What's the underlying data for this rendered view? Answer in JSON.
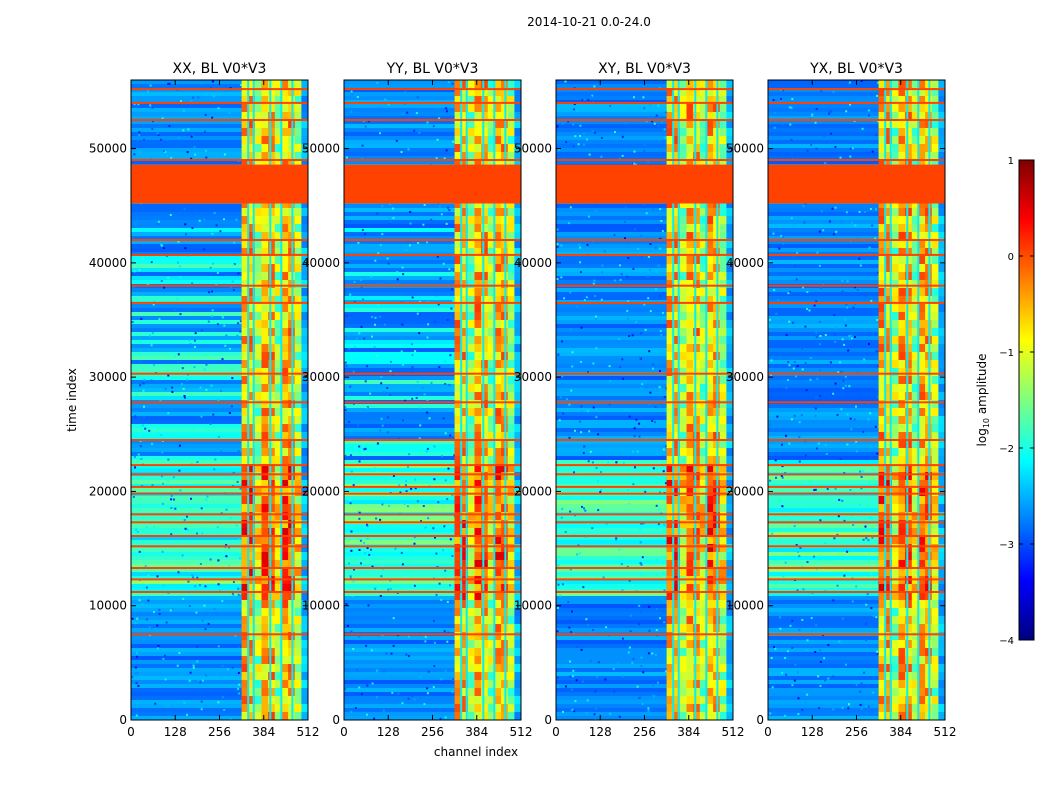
{
  "figure": {
    "suptitle": "2014-10-21 0.0-24.0",
    "xlabel": "channel index",
    "ylabel": "time index"
  },
  "colorbar": {
    "label_prefix": "log",
    "label_sub": "10",
    "label_suffix": " amplitude",
    "range": [
      -4,
      1
    ],
    "ticks": [
      1,
      0,
      -1,
      -2,
      -3,
      -4
    ],
    "tick_labels": [
      "1",
      "0",
      "−1",
      "−2",
      "−3",
      "−4"
    ],
    "colors": [
      "#00007f",
      "#0000ff",
      "#007fff",
      "#00ffff",
      "#7fff7f",
      "#ffff00",
      "#ff7f00",
      "#ff0000",
      "#7f0000"
    ]
  },
  "chart_data": [
    {
      "type": "heatmap",
      "title": "XX, BL V0*V3",
      "xlim": [
        0,
        512
      ],
      "ylim": [
        0,
        56000
      ],
      "xticks": [
        0,
        128,
        256,
        384,
        512
      ],
      "yticks": [
        0,
        10000,
        20000,
        30000,
        40000,
        50000
      ],
      "xtick_labels": [
        "0",
        "128",
        "256",
        "384",
        "512"
      ],
      "ytick_labels": [
        "0",
        "10000",
        "20000",
        "30000",
        "40000",
        "50000"
      ],
      "flagged_time_range": [
        45200,
        48600
      ],
      "high_amplitude_channel_range": [
        320,
        512
      ],
      "burst_time_range": [
        11000,
        23000
      ],
      "value_range": [
        -4,
        1
      ]
    },
    {
      "type": "heatmap",
      "title": "YY, BL V0*V3",
      "xlim": [
        0,
        512
      ],
      "ylim": [
        0,
        56000
      ],
      "xticks": [
        0,
        128,
        256,
        384,
        512
      ],
      "yticks": [
        0,
        10000,
        20000,
        30000,
        40000,
        50000
      ],
      "xtick_labels": [
        "0",
        "128",
        "256",
        "384",
        "512"
      ],
      "ytick_labels": [
        "0",
        "10000",
        "20000",
        "30000",
        "40000",
        "50000"
      ],
      "flagged_time_range": [
        45200,
        48600
      ],
      "high_amplitude_channel_range": [
        320,
        512
      ],
      "burst_time_range": [
        11000,
        23000
      ],
      "value_range": [
        -4,
        1
      ]
    },
    {
      "type": "heatmap",
      "title": "XY, BL V0*V3",
      "xlim": [
        0,
        512
      ],
      "ylim": [
        0,
        56000
      ],
      "xticks": [
        0,
        128,
        256,
        384,
        512
      ],
      "yticks": [
        0,
        10000,
        20000,
        30000,
        40000,
        50000
      ],
      "xtick_labels": [
        "0",
        "128",
        "256",
        "384",
        "512"
      ],
      "ytick_labels": [
        "0",
        "10000",
        "20000",
        "30000",
        "40000",
        "50000"
      ],
      "flagged_time_range": [
        45200,
        48600
      ],
      "high_amplitude_channel_range": [
        320,
        512
      ],
      "burst_time_range": [
        11000,
        23000
      ],
      "value_range": [
        -4,
        1
      ]
    },
    {
      "type": "heatmap",
      "title": "YX, BL V0*V3",
      "xlim": [
        0,
        512
      ],
      "ylim": [
        0,
        56000
      ],
      "xticks": [
        0,
        128,
        256,
        384,
        512
      ],
      "yticks": [
        0,
        10000,
        20000,
        30000,
        40000,
        50000
      ],
      "xtick_labels": [
        "0",
        "128",
        "256",
        "384",
        "512"
      ],
      "ytick_labels": [
        "0",
        "10000",
        "20000",
        "30000",
        "40000",
        "50000"
      ],
      "flagged_time_range": [
        45200,
        48600
      ],
      "high_amplitude_channel_range": [
        320,
        512
      ],
      "burst_time_range": [
        11000,
        23000
      ],
      "value_range": [
        -4,
        1
      ]
    }
  ]
}
